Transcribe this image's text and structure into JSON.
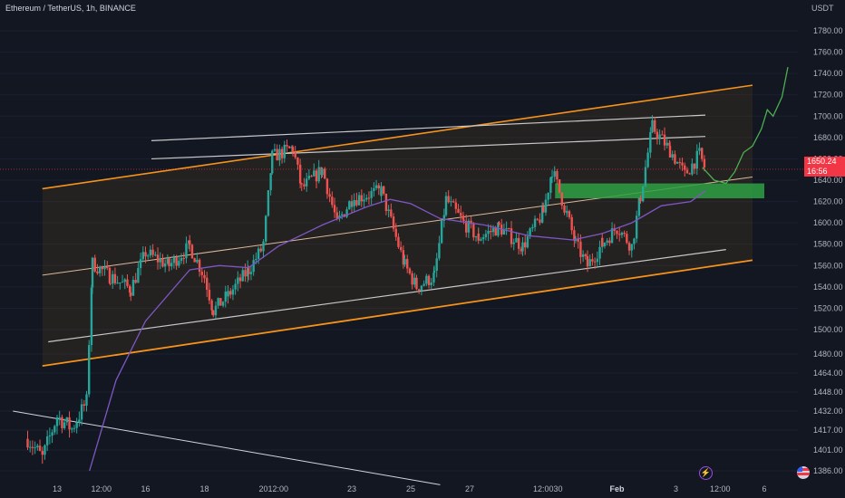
{
  "header": {
    "title": "Ethereum / TetherUS, 1h, BINANCE",
    "currency": "USDT"
  },
  "price_tag": {
    "price": "1650.24",
    "countdown": "16:56"
  },
  "icons": {
    "events": "lightning-icon",
    "flag": "us-flag-icon"
  },
  "colors": {
    "background": "#131722",
    "up": "#26a69a",
    "down": "#ef5350",
    "channel": "#f7931a",
    "ma": "#7e57c2",
    "zone": "#2ea043",
    "projection": "#4caf50",
    "price_line": "#f23645"
  },
  "chart_data": {
    "type": "candlestick",
    "title": "Ethereum / TetherUS, 1h, BINANCE",
    "y_unit": "USDT",
    "ylim": [
      1376,
      1796
    ],
    "y_ticks": [
      1386.0,
      1401.0,
      1417.0,
      1432.0,
      1448.0,
      1464.0,
      1480.0,
      1500.0,
      1520.0,
      1540.0,
      1560.0,
      1580.0,
      1600.0,
      1620.0,
      1640.0,
      1660.0,
      1680.0,
      1700.0,
      1720.0,
      1740.0,
      1760.0,
      1780.0
    ],
    "x_ticks": [
      {
        "label": "13",
        "t": 13.0
      },
      {
        "label": "12:00",
        "t": 14.5
      },
      {
        "label": "16",
        "t": 16.0
      },
      {
        "label": "18",
        "t": 18.0
      },
      {
        "label": "20",
        "t": 20.0
      },
      {
        "label": "12:00",
        "t": 20.5
      },
      {
        "label": "23",
        "t": 23.0
      },
      {
        "label": "25",
        "t": 25.0
      },
      {
        "label": "27",
        "t": 27.0
      },
      {
        "label": "12:00",
        "t": 29.5
      },
      {
        "label": "30",
        "t": 30.0
      },
      {
        "label": "Feb",
        "t": 32.0
      },
      {
        "label": "3",
        "t": 34.0
      },
      {
        "label": "12:00",
        "t": 35.5
      },
      {
        "label": "6",
        "t": 37.0
      }
    ],
    "last_price": 1650.24,
    "key_points": [
      {
        "t": 12.0,
        "p": 1410
      },
      {
        "t": 12.5,
        "p": 1395
      },
      {
        "t": 13.0,
        "p": 1428
      },
      {
        "t": 13.5,
        "p": 1418
      },
      {
        "t": 14.0,
        "p": 1440
      },
      {
        "t": 14.2,
        "p": 1562
      },
      {
        "t": 14.8,
        "p": 1550
      },
      {
        "t": 15.5,
        "p": 1538
      },
      {
        "t": 16.0,
        "p": 1572
      },
      {
        "t": 16.8,
        "p": 1560
      },
      {
        "t": 17.5,
        "p": 1578
      },
      {
        "t": 18.0,
        "p": 1550
      },
      {
        "t": 18.3,
        "p": 1518
      },
      {
        "t": 18.8,
        "p": 1532
      },
      {
        "t": 19.5,
        "p": 1556
      },
      {
        "t": 20.0,
        "p": 1578
      },
      {
        "t": 20.3,
        "p": 1662
      },
      {
        "t": 21.0,
        "p": 1670
      },
      {
        "t": 21.3,
        "p": 1632
      },
      {
        "t": 22.0,
        "p": 1650
      },
      {
        "t": 22.5,
        "p": 1600
      },
      {
        "t": 23.0,
        "p": 1622
      },
      {
        "t": 24.0,
        "p": 1630
      },
      {
        "t": 24.8,
        "p": 1560
      },
      {
        "t": 25.2,
        "p": 1540
      },
      {
        "t": 25.8,
        "p": 1550
      },
      {
        "t": 26.2,
        "p": 1622
      },
      {
        "t": 26.8,
        "p": 1600
      },
      {
        "t": 27.3,
        "p": 1586
      },
      {
        "t": 28.0,
        "p": 1596
      },
      {
        "t": 28.8,
        "p": 1578
      },
      {
        "t": 29.5,
        "p": 1610
      },
      {
        "t": 29.8,
        "p": 1650
      },
      {
        "t": 30.3,
        "p": 1608
      },
      {
        "t": 30.6,
        "p": 1580
      },
      {
        "t": 31.0,
        "p": 1560
      },
      {
        "t": 31.5,
        "p": 1580
      },
      {
        "t": 32.0,
        "p": 1596
      },
      {
        "t": 32.5,
        "p": 1578
      },
      {
        "t": 32.8,
        "p": 1625
      },
      {
        "t": 33.2,
        "p": 1690
      },
      {
        "t": 33.8,
        "p": 1668
      },
      {
        "t": 34.3,
        "p": 1645
      },
      {
        "t": 34.8,
        "p": 1664
      },
      {
        "t": 35.0,
        "p": 1650
      }
    ],
    "moving_average": [
      {
        "t": 14.1,
        "p": 1386
      },
      {
        "t": 15.0,
        "p": 1458
      },
      {
        "t": 16.0,
        "p": 1508
      },
      {
        "t": 17.5,
        "p": 1556
      },
      {
        "t": 18.5,
        "p": 1560
      },
      {
        "t": 19.5,
        "p": 1558
      },
      {
        "t": 20.5,
        "p": 1578
      },
      {
        "t": 22.0,
        "p": 1598
      },
      {
        "t": 23.5,
        "p": 1615
      },
      {
        "t": 24.3,
        "p": 1622
      },
      {
        "t": 25.0,
        "p": 1618
      },
      {
        "t": 26.0,
        "p": 1604
      },
      {
        "t": 27.5,
        "p": 1598
      },
      {
        "t": 29.0,
        "p": 1588
      },
      {
        "t": 30.5,
        "p": 1584
      },
      {
        "t": 31.5,
        "p": 1590
      },
      {
        "t": 32.5,
        "p": 1600
      },
      {
        "t": 33.5,
        "p": 1616
      },
      {
        "t": 34.5,
        "p": 1620
      },
      {
        "t": 35.0,
        "p": 1630
      }
    ],
    "drawings": {
      "channel_upper": [
        {
          "t": 12.5,
          "p": 1632
        },
        {
          "t": 36.6,
          "p": 1729
        }
      ],
      "channel_lower": [
        {
          "t": 12.5,
          "p": 1470
        },
        {
          "t": 36.6,
          "p": 1565
        }
      ],
      "channel_mid": [
        {
          "t": 12.5,
          "p": 1551
        },
        {
          "t": 36.6,
          "p": 1643
        }
      ],
      "upper_trend_1": [
        {
          "t": 16.2,
          "p": 1660
        },
        {
          "t": 35.0,
          "p": 1681
        }
      ],
      "upper_trend_2": [
        {
          "t": 16.2,
          "p": 1677
        },
        {
          "t": 35.0,
          "p": 1701
        }
      ],
      "lower_trend": [
        {
          "t": 12.7,
          "p": 1490
        },
        {
          "t": 35.7,
          "p": 1575
        }
      ],
      "long_trend": [
        {
          "t": 11.5,
          "p": 1432
        },
        {
          "t": 26.0,
          "p": 1376
        }
      ],
      "support_zone": {
        "t0": 29.9,
        "t1": 37.0,
        "p0": 1623,
        "p1": 1637
      },
      "projection": [
        {
          "t": 34.9,
          "p": 1652
        },
        {
          "t": 35.3,
          "p": 1640
        },
        {
          "t": 35.7,
          "p": 1637
        },
        {
          "t": 36.0,
          "p": 1648
        },
        {
          "t": 36.3,
          "p": 1666
        },
        {
          "t": 36.6,
          "p": 1672
        },
        {
          "t": 36.9,
          "p": 1688
        },
        {
          "t": 37.1,
          "p": 1706
        },
        {
          "t": 37.3,
          "p": 1700
        },
        {
          "t": 37.6,
          "p": 1718
        },
        {
          "t": 37.8,
          "p": 1746
        }
      ]
    }
  }
}
